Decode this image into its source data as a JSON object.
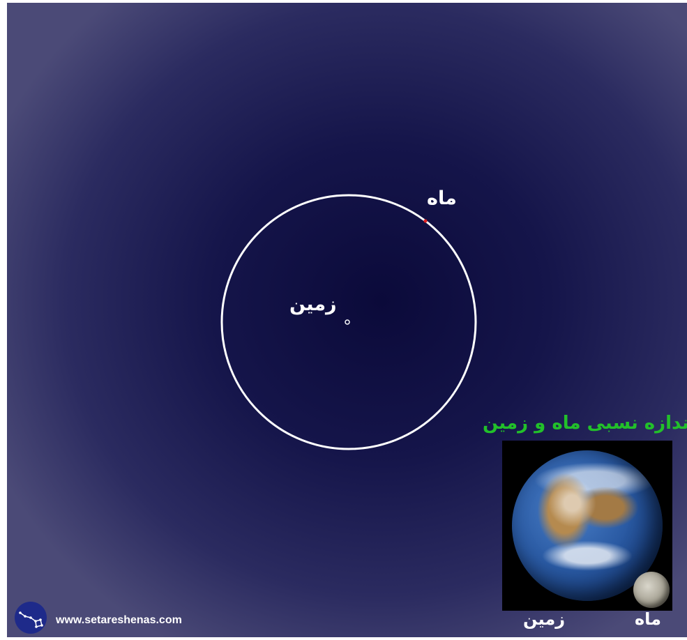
{
  "diagram": {
    "moon_label": "ماه",
    "earth_label": "زمین",
    "colors": {
      "orbit": "#ffffff",
      "moon_dot": "#e02020",
      "earth_dot": "#ffffff",
      "title": "#22c02a"
    }
  },
  "inset": {
    "title": "اندازه نسبی ماه و زمین",
    "earth_caption": "زمین",
    "moon_caption": "ماه"
  },
  "footer": {
    "website": "www.setareshenas.com",
    "logo_icon": "constellation-icon"
  }
}
